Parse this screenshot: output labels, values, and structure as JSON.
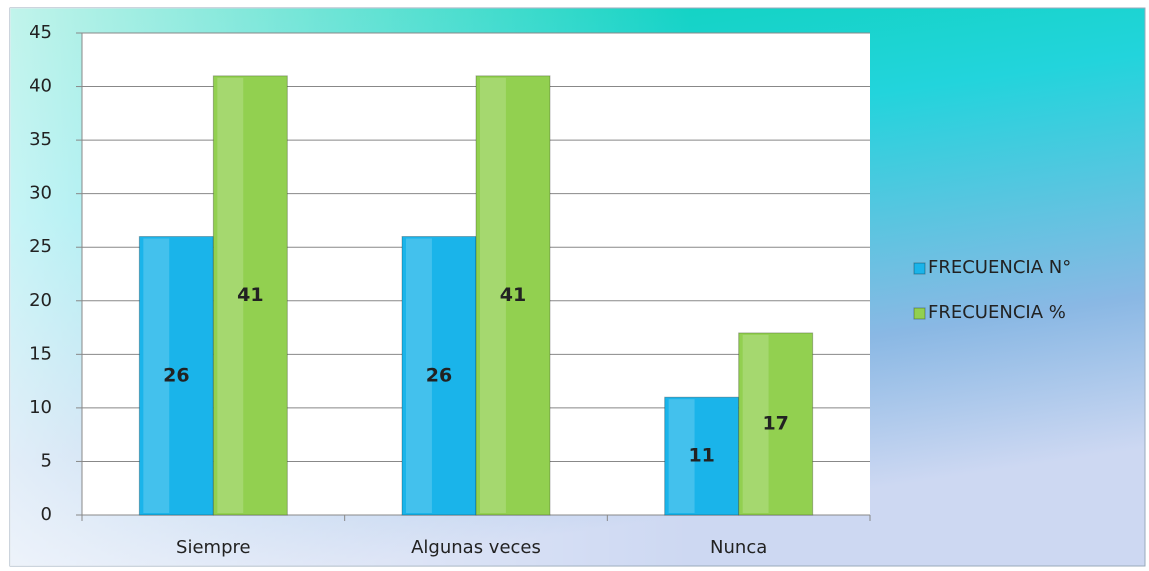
{
  "chart_data": {
    "type": "bar",
    "categories": [
      "Siempre",
      "Algunas veces",
      "Nunca"
    ],
    "series": [
      {
        "name": "FRECUENCIA N°",
        "color": "#1ab4ea",
        "values": [
          26,
          26,
          11
        ]
      },
      {
        "name": "FRECUENCIA %",
        "color": "#92d050",
        "values": [
          41,
          41,
          17
        ]
      }
    ],
    "ylim": [
      0,
      45
    ],
    "yticks": [
      0,
      5,
      10,
      15,
      20,
      25,
      30,
      35,
      40,
      45
    ],
    "grid": true,
    "legend": "right"
  }
}
